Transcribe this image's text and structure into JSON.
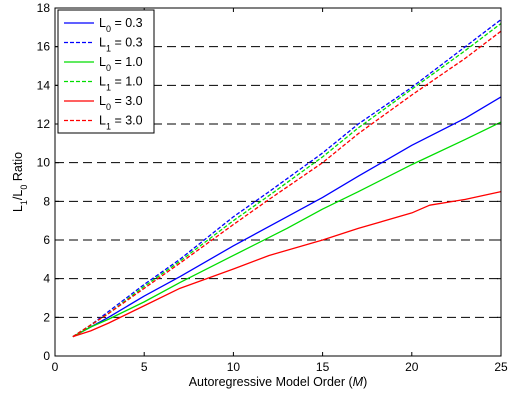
{
  "chart_data": {
    "type": "line",
    "xlabel": {
      "text": "Autoregressive Model Order (",
      "italic": "M",
      "suffix": ")"
    },
    "ylabel": {
      "parts": [
        {
          "text": "L",
          "sub": false
        },
        {
          "text": "1",
          "sub": true
        },
        {
          "text": "/L",
          "sub": false
        },
        {
          "text": "0",
          "sub": true
        },
        {
          "text": " Ratio",
          "sub": false
        }
      ]
    },
    "xlim": [
      0,
      25
    ],
    "ylim": [
      0,
      18
    ],
    "xticks": [
      0,
      5,
      10,
      15,
      20,
      25
    ],
    "yticks": [
      0,
      2,
      4,
      6,
      8,
      10,
      12,
      14,
      16,
      18
    ],
    "grid": "horizontal dashed",
    "legend_position": "top-left",
    "series": [
      {
        "name": {
          "main": "L",
          "sub": "0",
          "rest": " = 0.3"
        },
        "color": "#0000ff",
        "dashed": false,
        "x": [
          1,
          2,
          3,
          5,
          7,
          10,
          13,
          15,
          17,
          20,
          23,
          25
        ],
        "y": [
          1.0,
          1.5,
          2.0,
          3.1,
          4.1,
          5.7,
          7.2,
          8.2,
          9.3,
          10.9,
          12.3,
          13.4
        ]
      },
      {
        "name": {
          "main": "L",
          "sub": "1",
          "rest": " = 0.3"
        },
        "color": "#0000ff",
        "dashed": true,
        "x": [
          1,
          2,
          3,
          5,
          7,
          10,
          12,
          15,
          17,
          20,
          23,
          25
        ],
        "y": [
          1.0,
          1.6,
          2.3,
          3.7,
          5.0,
          7.2,
          8.5,
          10.5,
          12.0,
          13.9,
          16.0,
          17.4
        ]
      },
      {
        "name": {
          "main": "L",
          "sub": "0",
          "rest": " = 1.0"
        },
        "color": "#00dd00",
        "dashed": false,
        "x": [
          1,
          2,
          3,
          5,
          7,
          10,
          13,
          15,
          17,
          20,
          23,
          25
        ],
        "y": [
          1.0,
          1.5,
          1.9,
          2.8,
          3.8,
          5.2,
          6.6,
          7.6,
          8.5,
          9.9,
          11.2,
          12.1
        ]
      },
      {
        "name": {
          "main": "L",
          "sub": "1",
          "rest": " = 1.0"
        },
        "color": "#00dd00",
        "dashed": true,
        "x": [
          1,
          2,
          3,
          5,
          7,
          10,
          12,
          15,
          17,
          20,
          23,
          25
        ],
        "y": [
          1.0,
          1.6,
          2.2,
          3.6,
          4.9,
          7.0,
          8.3,
          10.3,
          11.8,
          13.8,
          15.8,
          17.2
        ]
      },
      {
        "name": {
          "main": "L",
          "sub": "0",
          "rest": " = 3.0"
        },
        "color": "#ff0000",
        "dashed": false,
        "x": [
          1,
          2,
          3,
          5,
          7,
          10,
          12,
          15,
          17,
          20,
          21,
          23,
          25
        ],
        "y": [
          1.0,
          1.3,
          1.7,
          2.6,
          3.5,
          4.5,
          5.2,
          6.0,
          6.6,
          7.4,
          7.8,
          8.1,
          8.5
        ]
      },
      {
        "name": {
          "main": "L",
          "sub": "1",
          "rest": " = 3.0"
        },
        "color": "#ff0000",
        "dashed": true,
        "x": [
          1,
          2,
          3,
          5,
          7,
          10,
          12,
          15,
          17,
          20,
          23,
          25
        ],
        "y": [
          1.0,
          1.6,
          2.2,
          3.5,
          4.8,
          6.8,
          8.1,
          10.0,
          11.5,
          13.5,
          15.4,
          16.8
        ]
      }
    ]
  }
}
